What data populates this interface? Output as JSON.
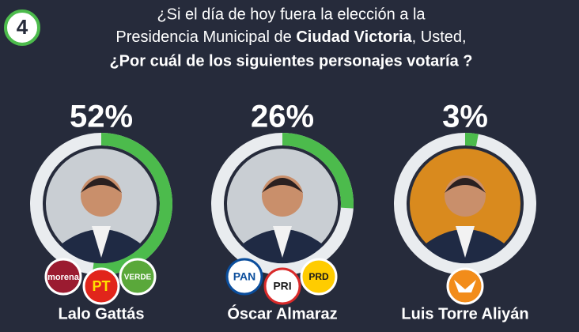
{
  "chart_data": {
    "type": "gauge",
    "number": "4",
    "title": {
      "line1": "¿Si el día de hoy fuera la elección a la",
      "line2a": "Presidencia Municipal de ",
      "line2b": "Ciudad Victoria",
      "line2c": ", Usted,",
      "line3": "¿Por cuál de los siguientes personajes votaría ?"
    },
    "categories": [
      "Lalo Gattás",
      "Óscar Almaraz",
      "Luis Torre Aliyán"
    ],
    "values": [
      52,
      26,
      3
    ],
    "value_labels": [
      "52%",
      "26%",
      "3%"
    ],
    "color": "#4cbb4c",
    "parties": [
      [
        "morena",
        "PT",
        "VERDE"
      ],
      [
        "PAN",
        "PRI",
        "PRD"
      ],
      []
    ]
  }
}
